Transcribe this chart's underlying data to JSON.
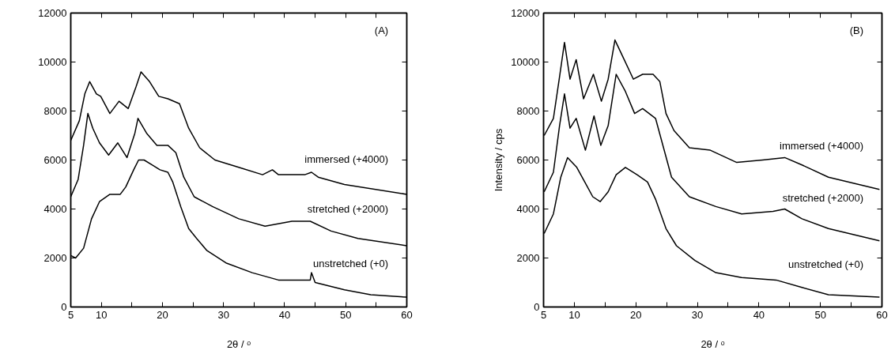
{
  "chart_data": [
    {
      "type": "line",
      "xlabel": "2θ / ᵒ",
      "annotations": [
        "(A)"
      ],
      "xlim": [
        5,
        60
      ],
      "ylim": [
        0,
        12000
      ],
      "xticks": [
        5,
        10,
        {
          "value": 15,
          "label": null
        },
        20,
        {
          "value": 25,
          "label": null
        },
        30,
        {
          "value": 35,
          "label": null
        },
        40,
        {
          "value": 45,
          "label": null
        },
        50,
        {
          "value": 55,
          "label": null
        },
        60
      ],
      "yticks": [
        0,
        2000,
        4000,
        6000,
        8000,
        10000,
        12000
      ],
      "grid": false,
      "legend": "right",
      "series": [
        {
          "name": "immersed (+4000)",
          "color": "#000000",
          "x": [
            5,
            6.4,
            7.3,
            8.1,
            9.2,
            9.9,
            11.4,
            12.9,
            14.4,
            15.7,
            16.5,
            17.9,
            19.4,
            20.9,
            22.8,
            24.3,
            26.1,
            28.6,
            32.5,
            36.4,
            38.0,
            39.0,
            43.3,
            44.4,
            45.5,
            49.8,
            60
          ],
          "values": [
            6800,
            7600,
            8700,
            9200,
            8700,
            8600,
            7900,
            8400,
            8100,
            9000,
            9600,
            9200,
            8600,
            8500,
            8300,
            7300,
            6500,
            6000,
            5700,
            5400,
            5600,
            5400,
            5400,
            5500,
            5300,
            5000,
            4600
          ]
        },
        {
          "name": "stretched (+2000)",
          "color": "#000000",
          "x": [
            5,
            6.2,
            7.1,
            7.8,
            8.6,
            9.7,
            11.2,
            12.7,
            14.2,
            15.5,
            16.0,
            17.4,
            19.1,
            20.9,
            22.2,
            23.5,
            25.2,
            28.2,
            32.5,
            36.8,
            41.2,
            44.2,
            47.6,
            52.0,
            60
          ],
          "values": [
            4500,
            5200,
            6600,
            7900,
            7300,
            6700,
            6200,
            6700,
            6100,
            7100,
            7700,
            7100,
            6600,
            6600,
            6300,
            5300,
            4500,
            4100,
            3600,
            3300,
            3500,
            3500,
            3100,
            2800,
            2500
          ]
        },
        {
          "name": "unstretched (+0)",
          "color": "#000000",
          "x": [
            5,
            5.8,
            7.1,
            8.4,
            9.7,
            11.4,
            13.1,
            14,
            15.3,
            16.1,
            17.0,
            18.3,
            19.6,
            20.9,
            21.7,
            23.0,
            24.3,
            25.6,
            27.3,
            30.4,
            34.7,
            39.0,
            44.2,
            44.4,
            45.0,
            49.8,
            54.1,
            60
          ],
          "values": [
            2100,
            2000,
            2400,
            3600,
            4300,
            4600,
            4600,
            4900,
            5600,
            6000,
            6000,
            5800,
            5600,
            5500,
            5100,
            4100,
            3200,
            2800,
            2300,
            1800,
            1400,
            1100,
            1100,
            1400,
            1000,
            700,
            500,
            400
          ]
        }
      ]
    },
    {
      "type": "line",
      "xlabel": "2θ / ᵒ",
      "ylabel": "Intensity / cps",
      "annotations": [
        "(B)"
      ],
      "xlim": [
        5,
        60
      ],
      "ylim": [
        0,
        12000
      ],
      "xticks": [
        5,
        10,
        {
          "value": 15,
          "label": null
        },
        20,
        {
          "value": 25,
          "label": null
        },
        30,
        {
          "value": 35,
          "label": null
        },
        40,
        {
          "value": 45,
          "label": null
        },
        50,
        {
          "value": 55,
          "label": null
        },
        60
      ],
      "yticks": [
        0,
        2000,
        4000,
        6000,
        8000,
        10000,
        12000
      ],
      "grid": false,
      "legend": "right",
      "series": [
        {
          "name": "immersed (+4000)",
          "color": "#000000",
          "x": [
            5.1,
            6.6,
            7.6,
            8.4,
            9.3,
            10.3,
            11.5,
            13.1,
            14.4,
            15.5,
            16.6,
            18.1,
            19.6,
            21.1,
            22.8,
            23.9,
            24.9,
            26.2,
            28.7,
            32.1,
            36.4,
            40.6,
            44.2,
            47.0,
            51.3,
            59.6
          ],
          "values": [
            7000,
            7700,
            9400,
            10800,
            9300,
            10100,
            8500,
            9500,
            8400,
            9300,
            10900,
            10100,
            9300,
            9500,
            9500,
            9200,
            7900,
            7200,
            6500,
            6400,
            5900,
            6000,
            6100,
            5800,
            5300,
            4800
          ]
        },
        {
          "name": "stretched (+2000)",
          "color": "#000000",
          "x": [
            5.1,
            6.6,
            7.6,
            8.4,
            9.3,
            10.3,
            11.8,
            13.2,
            14.3,
            15.5,
            16.8,
            18.3,
            19.8,
            21.1,
            23.2,
            24.5,
            25.8,
            28.7,
            33.0,
            37.2,
            42.3,
            44.2,
            47.0,
            51.3,
            59.6
          ],
          "values": [
            4700,
            5500,
            7400,
            8700,
            7300,
            7700,
            6400,
            7800,
            6600,
            7400,
            9500,
            8800,
            7900,
            8100,
            7700,
            6500,
            5300,
            4500,
            4100,
            3800,
            3900,
            4000,
            3600,
            3200,
            2700
          ]
        },
        {
          "name": "unstretched (+0)",
          "color": "#000000",
          "x": [
            5.1,
            6.6,
            7.8,
            8.9,
            10.4,
            11.7,
            13.0,
            14.2,
            15.5,
            16.8,
            18.3,
            20.2,
            21.9,
            23.2,
            24.9,
            26.6,
            29.6,
            33.0,
            37.2,
            42.8,
            47.0,
            51.3,
            59.6
          ],
          "values": [
            3000,
            3800,
            5300,
            6100,
            5700,
            5100,
            4500,
            4300,
            4700,
            5400,
            5700,
            5400,
            5100,
            4400,
            3200,
            2500,
            1900,
            1400,
            1200,
            1100,
            800,
            500,
            400
          ]
        }
      ]
    }
  ]
}
